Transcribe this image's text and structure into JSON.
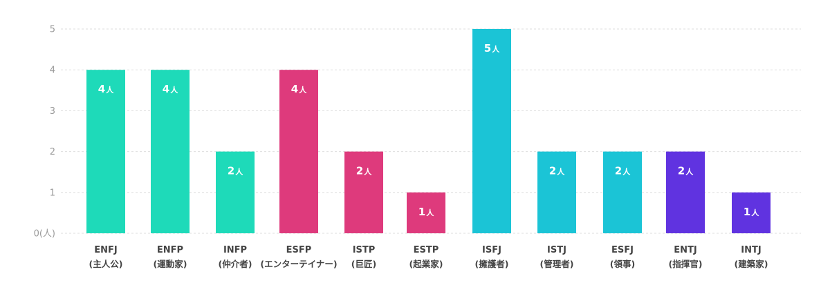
{
  "chart_data": {
    "type": "bar",
    "unit": "人",
    "ylim": [
      0,
      5
    ],
    "ytick_labels": [
      "0(人)",
      "1",
      "2",
      "3",
      "4",
      "5"
    ],
    "grid": true,
    "categories": [
      {
        "code": "ENFJ",
        "name": "(主人公)",
        "value": 4,
        "label": "4",
        "color": "#1edab9"
      },
      {
        "code": "ENFP",
        "name": "(運動家)",
        "value": 4,
        "label": "4",
        "color": "#1edab9"
      },
      {
        "code": "INFP",
        "name": "(仲介者)",
        "value": 2,
        "label": "2",
        "color": "#1edab9"
      },
      {
        "code": "ESFP",
        "name": "(エンターテイナー)",
        "value": 4,
        "label": "4",
        "color": "#de3a7c"
      },
      {
        "code": "ISTP",
        "name": "(巨匠)",
        "value": 2,
        "label": "2",
        "color": "#de3a7c"
      },
      {
        "code": "ESTP",
        "name": "(起業家)",
        "value": 1,
        "label": "1",
        "color": "#de3a7c"
      },
      {
        "code": "ISFJ",
        "name": "(擁護者)",
        "value": 5,
        "label": "5",
        "color": "#1bc4d6"
      },
      {
        "code": "ISTJ",
        "name": "(管理者)",
        "value": 2,
        "label": "2",
        "color": "#1bc4d6"
      },
      {
        "code": "ESFJ",
        "name": "(領事)",
        "value": 2,
        "label": "2",
        "color": "#1bc4d6"
      },
      {
        "code": "ENTJ",
        "name": "(指揮官)",
        "value": 2,
        "label": "2",
        "color": "#6033e0"
      },
      {
        "code": "INTJ",
        "name": "(建築家)",
        "value": 1,
        "label": "1",
        "color": "#6033e0"
      }
    ]
  }
}
